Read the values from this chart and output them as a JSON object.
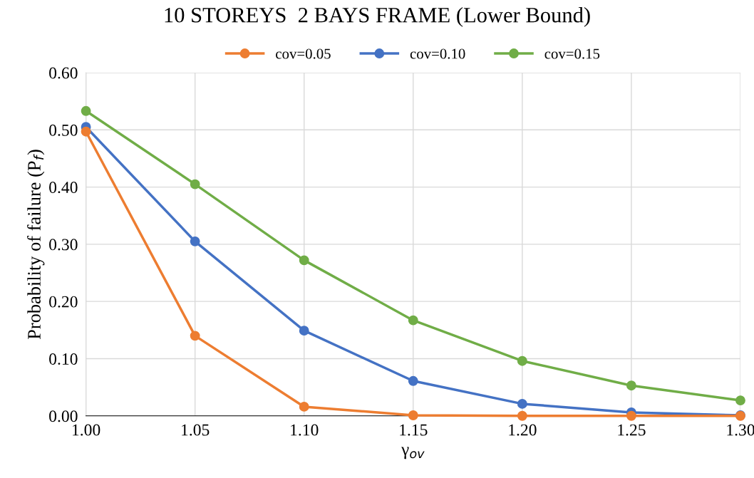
{
  "chart_data": {
    "type": "line",
    "title": "10 STOREYS  2 BAYS FRAME (Lower Bound)",
    "xlabel": "γ$_{ov}$",
    "ylabel": "Probability of failure (P$_{f}$)",
    "x": [
      1.0,
      1.05,
      1.1,
      1.15,
      1.2,
      1.25,
      1.3
    ],
    "series": [
      {
        "name": "cov=0.05",
        "color": "#ed7d31",
        "values": [
          0.497,
          0.14,
          0.016,
          0.001,
          0.0,
          0.0,
          0.0
        ]
      },
      {
        "name": "cov=0.10",
        "color": "#4472c4",
        "values": [
          0.505,
          0.305,
          0.149,
          0.061,
          0.021,
          0.006,
          0.001
        ]
      },
      {
        "name": "cov=0.15",
        "color": "#70ad47",
        "values": [
          0.533,
          0.405,
          0.272,
          0.167,
          0.096,
          0.053,
          0.027
        ]
      }
    ],
    "xlim": [
      1.0,
      1.3
    ],
    "xticks": [
      {
        "value": 1.0,
        "label": "1.00"
      },
      {
        "value": 1.05,
        "label": "1.05"
      },
      {
        "value": 1.1,
        "label": "1.10"
      },
      {
        "value": 1.15,
        "label": "1.15"
      },
      {
        "value": 1.2,
        "label": "1.20"
      },
      {
        "value": 1.25,
        "label": "1.25"
      },
      {
        "value": 1.3,
        "label": "1.30"
      }
    ],
    "ylim": [
      0,
      0.6
    ],
    "yticks": [
      {
        "value": 0,
        "label": "0.00"
      },
      {
        "value": 0.1,
        "label": "0.10"
      },
      {
        "value": 0.2,
        "label": "0.20"
      },
      {
        "value": 0.3,
        "label": "0.30"
      },
      {
        "value": 0.4,
        "label": "0.40"
      },
      {
        "value": 0.5,
        "label": "0.50"
      },
      {
        "value": 0.6,
        "label": "0.60"
      }
    ],
    "grid": true,
    "legend": "top",
    "marker": "circle",
    "line_style": "solid"
  }
}
